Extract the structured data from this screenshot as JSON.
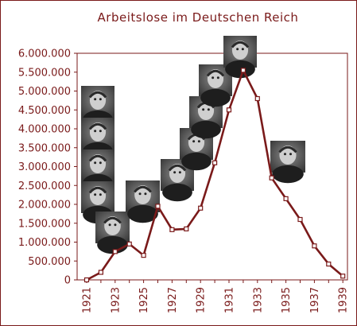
{
  "chart_data": {
    "type": "line",
    "title": "Arbeitslose im Deutschen Reich",
    "xlabel": "",
    "ylabel": "",
    "xlim": [
      1921,
      1939
    ],
    "ylim": [
      0,
      6000000
    ],
    "y_ticks": [
      0,
      500000,
      1000000,
      1500000,
      2000000,
      2500000,
      3000000,
      3500000,
      4000000,
      4500000,
      5000000,
      5500000,
      6000000
    ],
    "y_tick_labels": [
      "0",
      "500.000",
      "1.000.000",
      "1.500.000",
      "2.000.000",
      "2.500.000",
      "3.000.000",
      "3.500.000",
      "4.000.000",
      "4.500.000",
      "5.000.000",
      "5.500.000",
      "6.000.000"
    ],
    "x_ticks": [
      1921,
      1923,
      1925,
      1927,
      1929,
      1931,
      1933,
      1935,
      1937,
      1939
    ],
    "x_tick_labels": [
      "1921",
      "1923",
      "1925",
      "1927",
      "1929",
      "1931",
      "1933",
      "1935",
      "1937",
      "1939"
    ],
    "grid": false,
    "series": [
      {
        "color": "#7a1a1a",
        "x": [
          1921,
          1922,
          1923,
          1924,
          1925,
          1926,
          1927,
          1928,
          1929,
          1930,
          1931,
          1932,
          1933,
          1934,
          1935,
          1936,
          1937,
          1938,
          1939
        ],
        "values": [
          0,
          200000,
          750000,
          950000,
          650000,
          1950000,
          1330000,
          1350000,
          1900000,
          3100000,
          4500000,
          5550000,
          4800000,
          2700000,
          2150000,
          1600000,
          900000,
          420000,
          100000
        ]
      }
    ],
    "portraits": [
      {
        "icon": "portrait-photo",
        "year": 1922
      },
      {
        "icon": "portrait-photo",
        "year": 1922
      },
      {
        "icon": "portrait-photo",
        "year": 1922
      },
      {
        "icon": "portrait-photo",
        "year": 1922
      },
      {
        "icon": "portrait-photo",
        "year": 1923
      },
      {
        "icon": "portrait-photo",
        "year": 1925
      },
      {
        "icon": "portrait-photo",
        "year": 1927
      },
      {
        "icon": "portrait-photo",
        "year": 1928
      },
      {
        "icon": "portrait-photo",
        "year": 1929
      },
      {
        "icon": "portrait-photo",
        "year": 1930
      },
      {
        "icon": "portrait-photo",
        "year": 1932
      },
      {
        "icon": "portrait-photo",
        "year": 1934
      }
    ]
  }
}
